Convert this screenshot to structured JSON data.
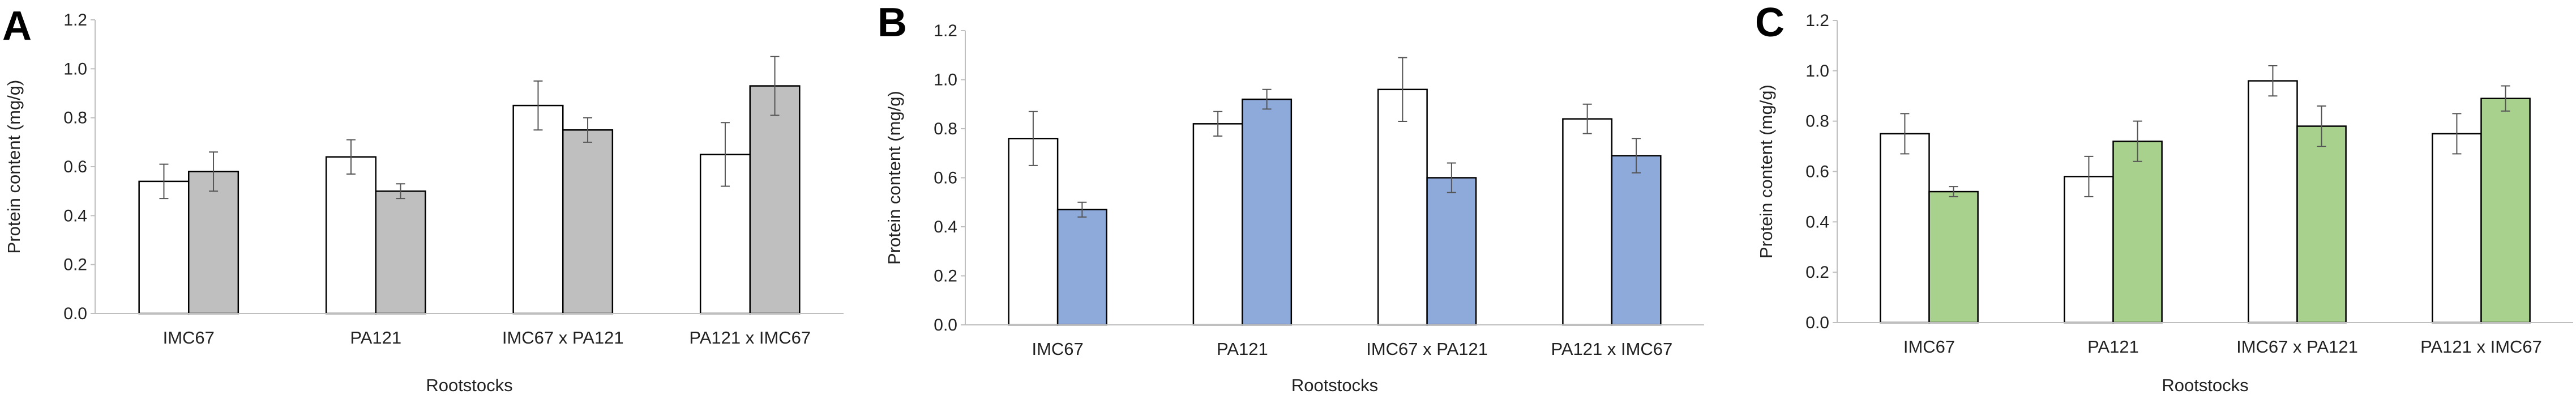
{
  "chart_data": [
    {
      "panel_letter": "A",
      "type": "bar",
      "ylabel": "Protein content (mg/g)",
      "xlabel": "Rootstocks",
      "ylim": [
        0,
        1.2
      ],
      "yticks": [
        "0.0",
        "0.2",
        "0.4",
        "0.6",
        "0.8",
        "1.0",
        "1.2"
      ],
      "categories": [
        "IMC67",
        "PA121",
        "IMC67 x PA121",
        "PA121 x IMC67"
      ],
      "series": [
        {
          "color": "#ffffff",
          "values": [
            0.54,
            0.64,
            0.85,
            0.65
          ],
          "errors": [
            0.07,
            0.07,
            0.1,
            0.13
          ]
        },
        {
          "color": "#bfbfbf",
          "values": [
            0.58,
            0.5,
            0.75,
            0.93
          ],
          "errors": [
            0.08,
            0.03,
            0.05,
            0.12
          ]
        }
      ]
    },
    {
      "panel_letter": "B",
      "type": "bar",
      "ylabel": "Protein content (mg/g)",
      "xlabel": "Rootstocks",
      "ylim": [
        0,
        1.2
      ],
      "yticks": [
        "0.0",
        "0.2",
        "0.4",
        "0.6",
        "0.8",
        "1.0",
        "1.2"
      ],
      "categories": [
        "IMC67",
        "PA121",
        "IMC67 x PA121",
        "PA121 x IMC67"
      ],
      "series": [
        {
          "color": "#ffffff",
          "values": [
            0.76,
            0.82,
            0.96,
            0.84
          ],
          "errors": [
            0.11,
            0.05,
            0.13,
            0.06
          ]
        },
        {
          "color": "#8eaadb",
          "values": [
            0.47,
            0.92,
            0.6,
            0.69
          ],
          "errors": [
            0.03,
            0.04,
            0.06,
            0.07
          ]
        }
      ]
    },
    {
      "panel_letter": "C",
      "type": "bar",
      "ylabel": "Protein content (mg/g)",
      "xlabel": "Rootstocks",
      "ylim": [
        0,
        1.2
      ],
      "yticks": [
        "0.0",
        "0.2",
        "0.4",
        "0.6",
        "0.8",
        "1.0",
        "1.2"
      ],
      "categories": [
        "IMC67",
        "PA121",
        "IMC67 x PA121",
        "PA121 x IMC67"
      ],
      "series": [
        {
          "color": "#ffffff",
          "values": [
            0.75,
            0.58,
            0.96,
            0.75
          ],
          "errors": [
            0.08,
            0.08,
            0.06,
            0.08
          ]
        },
        {
          "color": "#a9d18e",
          "values": [
            0.52,
            0.72,
            0.78,
            0.89
          ],
          "errors": [
            0.02,
            0.08,
            0.08,
            0.05
          ]
        }
      ]
    }
  ]
}
